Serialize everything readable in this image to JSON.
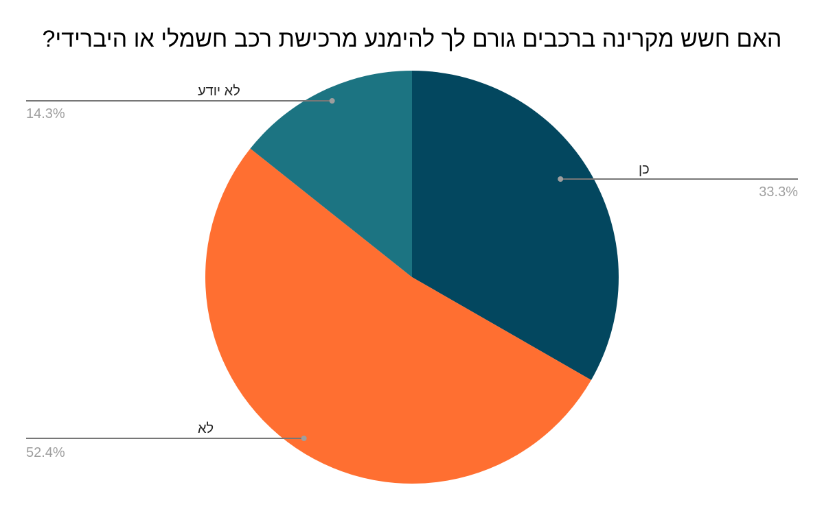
{
  "chart_data": {
    "type": "pie",
    "title": "האם חשש מקרינה ברכבים גורם לך להימנע מרכישת רכב חשמלי או היברידי?",
    "slices": [
      {
        "label": "כן",
        "value": 33.3,
        "value_label": "33.3%",
        "color": "#03475f"
      },
      {
        "label": "לא",
        "value": 52.4,
        "value_label": "52.4%",
        "color": "#ff6f31"
      },
      {
        "label": "לא יודע",
        "value": 14.3,
        "value_label": "14.3%",
        "color": "#1c7482"
      }
    ],
    "start_angle": "12 o'clock",
    "direction": "clockwise",
    "legend": "none",
    "label_style": "callout lines"
  }
}
